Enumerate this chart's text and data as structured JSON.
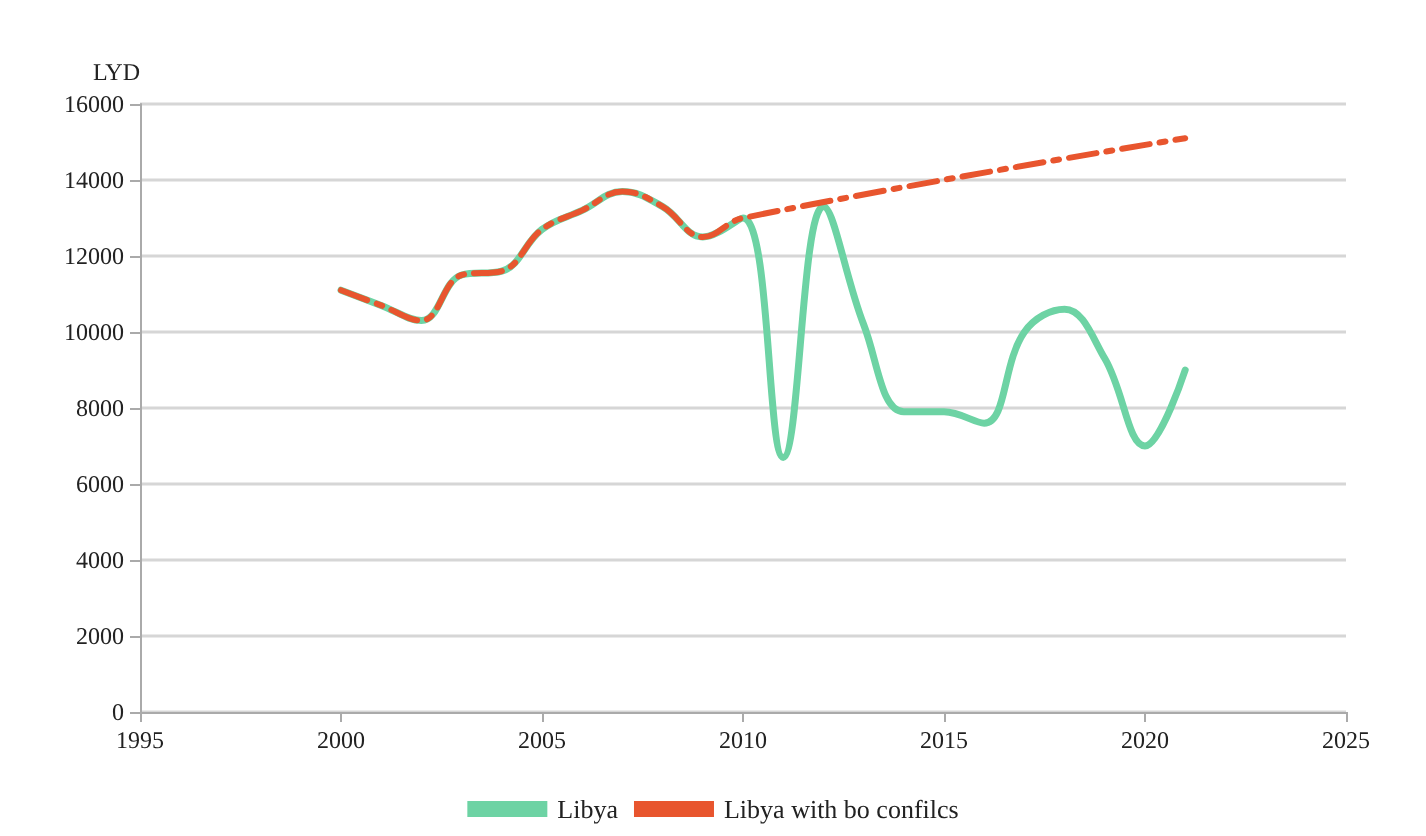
{
  "chart_data": {
    "type": "line",
    "ylabel": "LYD",
    "xlim": [
      1995,
      2025
    ],
    "xticks": [
      1995,
      2000,
      2005,
      2010,
      2015,
      2020,
      2025
    ],
    "ylim": [
      0,
      16000
    ],
    "yticks": [
      0,
      2000,
      4000,
      6000,
      8000,
      10000,
      12000,
      14000,
      16000
    ],
    "grid": "y",
    "legend": "bottom",
    "marker": "none",
    "series": [
      {
        "name": "Libya",
        "color": "#6dd3a4",
        "line_style": "solid",
        "x": [
          2000,
          2001,
          2002,
          2003,
          2004,
          2005,
          2006,
          2007,
          2008,
          2009,
          2010,
          2011,
          2012,
          2013,
          2014,
          2015,
          2016,
          2017,
          2018,
          2019,
          2020,
          2021
        ],
        "values": [
          11100,
          10700,
          10300,
          11500,
          11600,
          12700,
          13200,
          13700,
          13300,
          12500,
          13000,
          6700,
          13300,
          10200,
          7900,
          7900,
          7600,
          10000,
          10600,
          9300,
          7000,
          9000
        ]
      },
      {
        "name": "Libya with bo confilcs",
        "color": "#e8552e",
        "line_style": "dashed",
        "x": [
          2000,
          2001,
          2002,
          2003,
          2004,
          2005,
          2006,
          2007,
          2008,
          2009,
          2010,
          2021
        ],
        "values": [
          11100,
          10700,
          10300,
          11500,
          11600,
          12700,
          13200,
          13700,
          13300,
          12500,
          13000,
          15100
        ]
      }
    ]
  }
}
